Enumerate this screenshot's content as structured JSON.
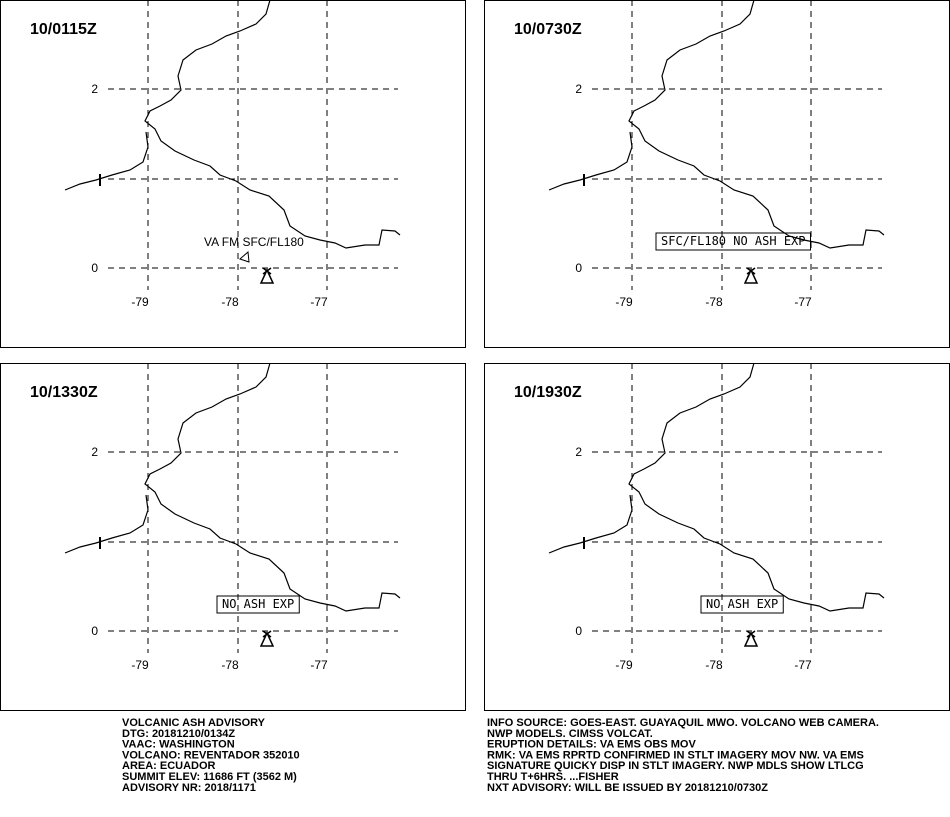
{
  "panels": [
    {
      "time": "10/0115Z",
      "annotation": "VA FM SFC/FL180"
    },
    {
      "time": "10/0730Z",
      "annotation": "SFC/FL180 NO ASH EXP"
    },
    {
      "time": "10/1330Z",
      "annotation": "NO ASH EXP"
    },
    {
      "time": "10/1930Z",
      "annotation": "NO ASH EXP"
    }
  ],
  "axes": {
    "y_labels": [
      "2",
      "0"
    ],
    "x_labels": [
      "-79",
      "-78",
      "-77"
    ]
  },
  "advisory_left": [
    "VOLCANIC ASH ADVISORY",
    "DTG: 20181210/0134Z",
    "VAAC: WASHINGTON",
    "VOLCANO: REVENTADOR 352010",
    "AREA: ECUADOR",
    "SUMMIT ELEV: 11686 FT (3562 M)",
    "ADVISORY NR: 2018/1171"
  ],
  "advisory_right": [
    "INFO SOURCE: GOES-EAST. GUAYAQUIL MWO. VOLCANO WEB CAMERA.",
    "NWP MODELS. CIMSS VOLCAT.",
    "ERUPTION DETAILS: VA EMS OBS MOV",
    "RMK: VA EMS RPRTD CONFIRMED IN STLT IMAGERY MOV NW. VA EMS",
    "SIGNATURE QUICKY DISP IN STLT IMAGERY. NWP MDLS SHOW LTLCG",
    "THRU T+6HRS. ...FISHER",
    "NXT ADVISORY: WILL BE ISSUED BY 20181210/0730Z"
  ]
}
